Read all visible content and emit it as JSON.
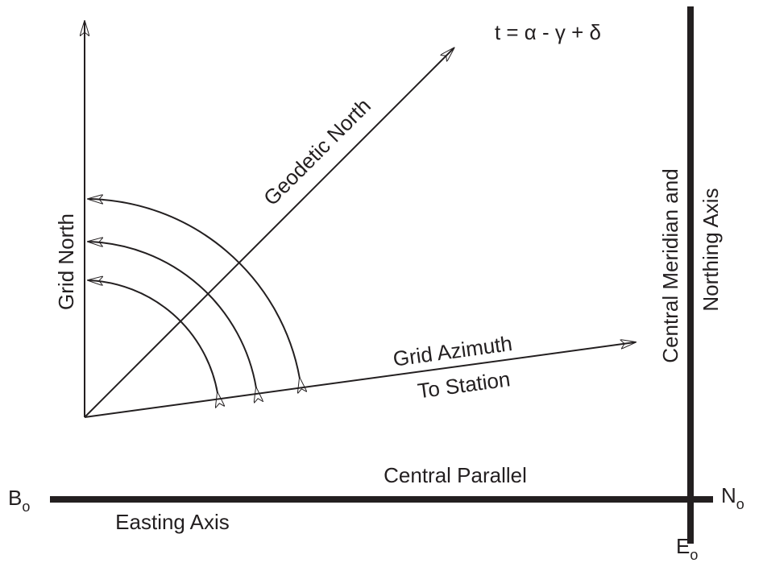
{
  "formula": "t = α - γ + δ",
  "geodetic_north": "Geodetic North",
  "grid_north": "Grid North",
  "grid_azimuth": [
    "Grid Azimuth",
    "To Station"
  ],
  "central_meridian": [
    "Central Meridian and",
    "Northing Axis"
  ],
  "central_parallel": "Central Parallel",
  "easting_axis": "Easting Axis",
  "points": {
    "b": {
      "text": "B",
      "sub": "o"
    },
    "n": {
      "text": "N",
      "sub": "o"
    },
    "e": {
      "text": "E",
      "sub": "o"
    }
  }
}
